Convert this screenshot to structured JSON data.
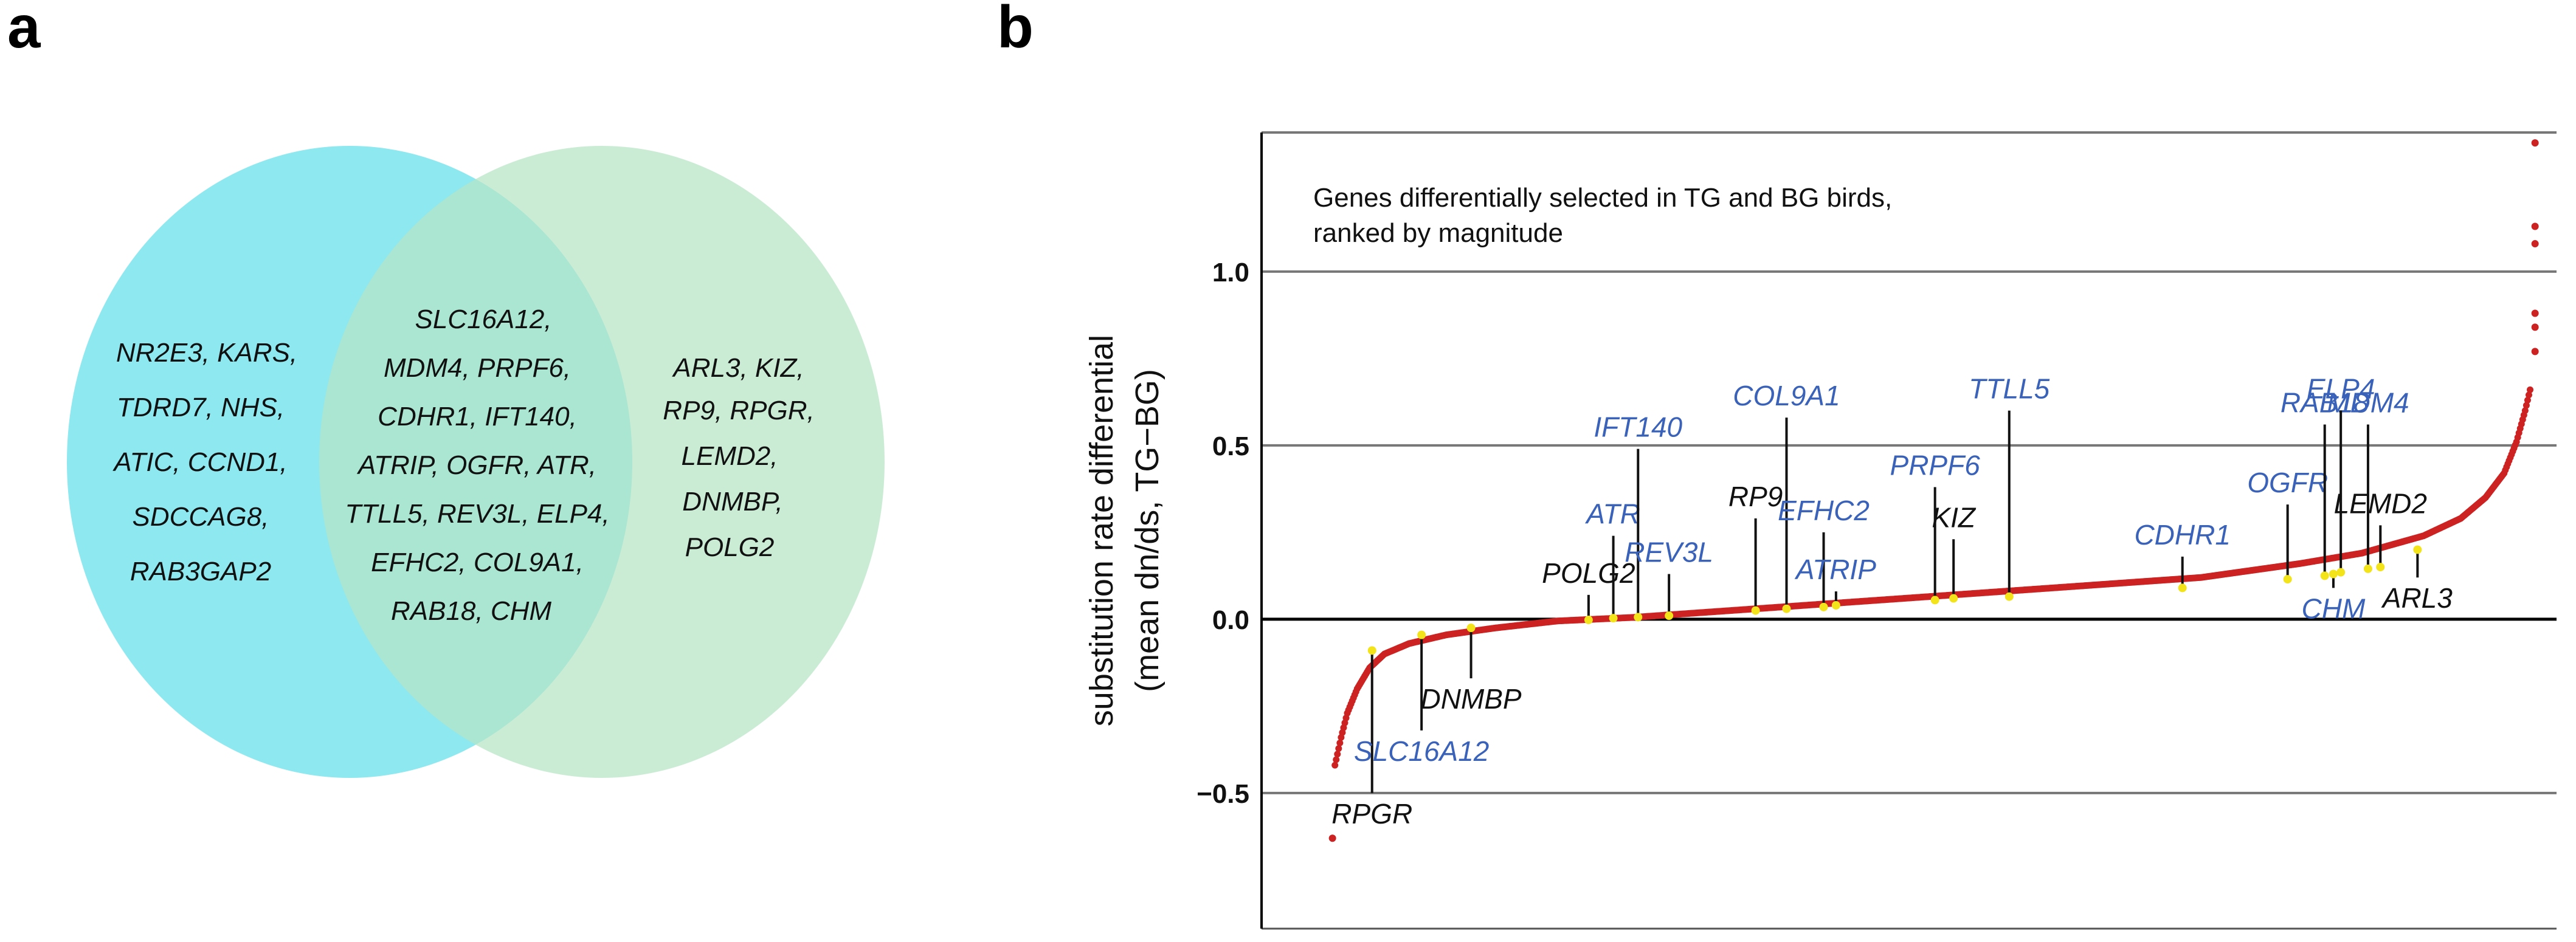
{
  "panels": {
    "a": {
      "letter": "a"
    },
    "b": {
      "letter": "b"
    }
  },
  "venn": {
    "left_color": "#8ee8f0",
    "right_color": "#b6e5c5",
    "left_only": [
      "NR2E3,   KARS,",
      "TDRD7,   NHS,",
      "ATIC,   CCND1,",
      "SDCCAG8,",
      "RAB3GAP2"
    ],
    "overlap": [
      "SLC16A12,",
      "MDM4,   PRPF6,",
      "CDHR1,   IFT140,",
      "ATRIP,  OGFR,  ATR,",
      "TTLL5,  REV3L,  ELP4,",
      "EFHC2,   COL9A1,",
      "RAB18,   CHM"
    ],
    "right_only": [
      "ARL3,   KIZ,",
      "RP9,   RPGR,",
      "LEMD2,",
      "DNMBP,",
      "POLG2"
    ]
  },
  "chart_data": {
    "type": "scatter",
    "title": "Genes differentially selected in TG and BG birds,",
    "subtitle": "ranked by magnitude",
    "xlabel": "",
    "ylabel": "substitution rate differential",
    "ylabel2": "(mean dn/ds, TG−BG)",
    "ylim": [
      -0.89,
      1.4
    ],
    "yticks": [
      -0.5,
      0.0,
      0.5,
      1.0
    ],
    "ytick_labels": [
      "−0.5",
      "0.0",
      "0.5",
      "1.0"
    ],
    "grid_y": [
      -0.5,
      0.5,
      1.0,
      1.4
    ],
    "zero_line": 0.0,
    "xlim": [
      0,
      1000
    ],
    "series_color": "#cc2222",
    "highlight_color": "#f2e31b",
    "blue_label_color": "#3a62b8",
    "black_label_color": "#111111",
    "outliers": [
      {
        "x": 990,
        "y": 1.37
      },
      {
        "x": 990,
        "y": 1.13
      },
      {
        "x": 990,
        "y": 1.08
      },
      {
        "x": 990,
        "y": 0.88
      },
      {
        "x": 990,
        "y": 0.84
      },
      {
        "x": 990,
        "y": 0.77
      },
      {
        "x": 18,
        "y": -0.63
      }
    ],
    "curve": [
      {
        "x": 20,
        "y": -0.42
      },
      {
        "x": 25,
        "y": -0.34
      },
      {
        "x": 30,
        "y": -0.27
      },
      {
        "x": 38,
        "y": -0.2
      },
      {
        "x": 48,
        "y": -0.14
      },
      {
        "x": 60,
        "y": -0.1
      },
      {
        "x": 80,
        "y": -0.07
      },
      {
        "x": 110,
        "y": -0.045
      },
      {
        "x": 150,
        "y": -0.025
      },
      {
        "x": 200,
        "y": -0.005
      },
      {
        "x": 260,
        "y": 0.005
      },
      {
        "x": 320,
        "y": 0.02
      },
      {
        "x": 400,
        "y": 0.04
      },
      {
        "x": 480,
        "y": 0.06
      },
      {
        "x": 560,
        "y": 0.08
      },
      {
        "x": 640,
        "y": 0.1
      },
      {
        "x": 720,
        "y": 0.12
      },
      {
        "x": 800,
        "y": 0.16
      },
      {
        "x": 850,
        "y": 0.19
      },
      {
        "x": 900,
        "y": 0.24
      },
      {
        "x": 930,
        "y": 0.29
      },
      {
        "x": 950,
        "y": 0.35
      },
      {
        "x": 965,
        "y": 0.42
      },
      {
        "x": 975,
        "y": 0.51
      },
      {
        "x": 982,
        "y": 0.6
      },
      {
        "x": 986,
        "y": 0.66
      }
    ],
    "genes": [
      {
        "name": "RPGR",
        "x": 50,
        "y": -0.09,
        "ly": -0.5,
        "color": "black",
        "pos": "below"
      },
      {
        "name": "SLC16A12",
        "x": 90,
        "y": -0.045,
        "ly": -0.32,
        "color": "blue",
        "pos": "below"
      },
      {
        "name": "DNMBP",
        "x": 130,
        "y": -0.025,
        "ly": -0.17,
        "color": "black",
        "pos": "below"
      },
      {
        "name": "POLG2",
        "x": 225,
        "y": -0.002,
        "ly": 0.07,
        "color": "black",
        "pos": "above"
      },
      {
        "name": "ATR",
        "x": 245,
        "y": 0.003,
        "ly": 0.24,
        "color": "blue",
        "pos": "above"
      },
      {
        "name": "IFT140",
        "x": 265,
        "y": 0.006,
        "ly": 0.49,
        "color": "blue",
        "pos": "above"
      },
      {
        "name": "REV3L",
        "x": 290,
        "y": 0.01,
        "ly": 0.13,
        "color": "blue",
        "pos": "above"
      },
      {
        "name": "RP9",
        "x": 360,
        "y": 0.025,
        "ly": 0.29,
        "color": "black",
        "pos": "above"
      },
      {
        "name": "COL9A1",
        "x": 385,
        "y": 0.03,
        "ly": 0.58,
        "color": "blue",
        "pos": "above"
      },
      {
        "name": "EFHC2",
        "x": 415,
        "y": 0.035,
        "ly": 0.25,
        "color": "blue",
        "pos": "above"
      },
      {
        "name": "ATRIP",
        "x": 425,
        "y": 0.04,
        "ly": 0.08,
        "color": "blue",
        "pos": "above"
      },
      {
        "name": "PRPF6",
        "x": 505,
        "y": 0.055,
        "ly": 0.38,
        "color": "blue",
        "pos": "above"
      },
      {
        "name": "KIZ",
        "x": 520,
        "y": 0.06,
        "ly": 0.23,
        "color": "black",
        "pos": "above"
      },
      {
        "name": "TTLL5",
        "x": 565,
        "y": 0.065,
        "ly": 0.6,
        "color": "blue",
        "pos": "above"
      },
      {
        "name": "CDHR1",
        "x": 705,
        "y": 0.09,
        "ly": 0.18,
        "color": "blue",
        "pos": "above"
      },
      {
        "name": "OGFR",
        "x": 790,
        "y": 0.115,
        "ly": 0.33,
        "color": "blue",
        "pos": "above"
      },
      {
        "name": "RAB18",
        "x": 820,
        "y": 0.125,
        "ly": 0.56,
        "color": "blue",
        "pos": "above"
      },
      {
        "name": "CHM",
        "x": 827,
        "y": 0.13,
        "ly": 0.09,
        "color": "blue",
        "pos": "below"
      },
      {
        "name": "ELP4",
        "x": 833,
        "y": 0.135,
        "ly": 0.6,
        "color": "blue",
        "pos": "above"
      },
      {
        "name": "MDM4",
        "x": 855,
        "y": 0.145,
        "ly": 0.56,
        "color": "blue",
        "pos": "above"
      },
      {
        "name": "LEMD2",
        "x": 865,
        "y": 0.15,
        "ly": 0.27,
        "color": "black",
        "pos": "above"
      },
      {
        "name": "ARL3",
        "x": 895,
        "y": 0.2,
        "ly": 0.12,
        "color": "black",
        "pos": "below"
      }
    ]
  }
}
